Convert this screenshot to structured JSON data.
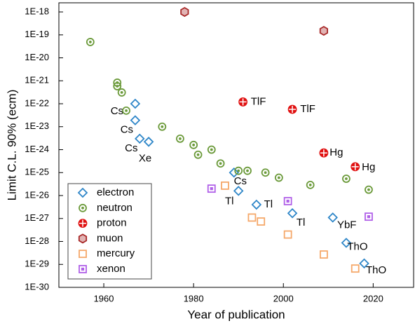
{
  "chart_data": {
    "type": "scatter",
    "x_label": "Year of publication",
    "y_label": "Limit C.L. 90% (ecm)",
    "log_y": true,
    "xlim": [
      1950,
      2029
    ],
    "xticks": [
      1960,
      1980,
      2000,
      2020
    ],
    "ylim": [
      1e-30,
      2.5e-18
    ],
    "yticks": [
      {
        "value": 1e-18,
        "label": "1E-18"
      },
      {
        "value": 1e-19,
        "label": "1E-19"
      },
      {
        "value": 1e-20,
        "label": "1E-20"
      },
      {
        "value": 1e-21,
        "label": "1E-21"
      },
      {
        "value": 1e-22,
        "label": "1E-22"
      },
      {
        "value": 1e-23,
        "label": "1E-23"
      },
      {
        "value": 1e-24,
        "label": "1E-24"
      },
      {
        "value": 1e-25,
        "label": "1E-25"
      },
      {
        "value": 1e-26,
        "label": "1E-26"
      },
      {
        "value": 1e-27,
        "label": "1E-27"
      },
      {
        "value": 1e-28,
        "label": "1E-28"
      },
      {
        "value": 1e-29,
        "label": "1E-29"
      },
      {
        "value": 1e-30,
        "label": "1E-30"
      }
    ],
    "legend_position": "lower left",
    "series": [
      {
        "name": "electron",
        "color": "#2e86c8",
        "marker": "diamond",
        "x": [
          1967,
          1967,
          1968,
          1970,
          1989,
          1990,
          1994,
          2002,
          2011,
          2014,
          2018
        ],
        "values": [
          1e-22,
          1.9e-23,
          3e-24,
          2.2e-24,
          1e-25,
          1.6e-26,
          4e-27,
          1.7e-27,
          1.1e-27,
          8.7e-29,
          1.1e-29
        ],
        "point_labels": [
          "Cs",
          "Cs",
          "Cs",
          "Xe",
          "Cs",
          "Tl",
          "Tl",
          "Tl",
          "YbF",
          "ThO",
          "ThO"
        ]
      },
      {
        "name": "neutron",
        "color": "#6b9a3a",
        "marker": "dotcircle",
        "x": [
          1957,
          1963,
          1963,
          1964,
          1965,
          1973,
          1977,
          1980,
          1981,
          1984,
          1986,
          1990,
          1992,
          1996,
          1999,
          2006,
          2014,
          2019
        ],
        "values": [
          4.9e-20,
          8.3e-22,
          5.8e-22,
          3.1e-22,
          5e-23,
          1e-23,
          3e-24,
          1.6e-24,
          6e-25,
          1e-24,
          2.5e-25,
          1.2e-25,
          1.2e-25,
          1e-25,
          6e-26,
          2.9e-26,
          5.4e-26,
          1.8e-26
        ]
      },
      {
        "name": "proton",
        "color": "#e01010",
        "marker": "pluscircle",
        "x": [
          1991,
          2002,
          2009,
          2016
        ],
        "values": [
          1.2e-22,
          5.7e-23,
          7.2e-25,
          1.8e-25
        ],
        "point_labels": [
          "TlF",
          "TlF",
          "Hg",
          "Hg"
        ]
      },
      {
        "name": "muon",
        "color": "#a82828",
        "marker": "hexagon",
        "x": [
          1978,
          2009
        ],
        "values": [
          1e-18,
          1.5e-19
        ]
      },
      {
        "name": "mercury",
        "color": "#f5a86a",
        "marker": "square",
        "x": [
          1987,
          1993,
          1995,
          2001,
          2009,
          2016
        ],
        "values": [
          2.7e-26,
          1.1e-27,
          7.4e-28,
          2e-28,
          2.7e-29,
          6.6e-30
        ]
      },
      {
        "name": "xenon",
        "color": "#b060e8",
        "marker": "dotsquare",
        "x": [
          1984,
          2001,
          2019
        ],
        "values": [
          2e-26,
          5.7e-27,
          1.2e-27
        ]
      }
    ]
  }
}
